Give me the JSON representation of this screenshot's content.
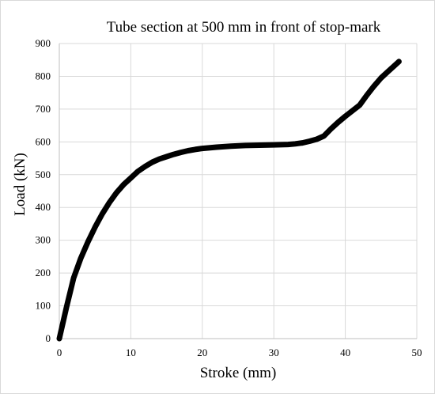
{
  "chart_data": {
    "type": "line",
    "title": "Tube section at 500 mm in front of stop-mark",
    "xlabel": "Stroke (mm)",
    "ylabel": "Load (kN)",
    "xlim": [
      0,
      50
    ],
    "ylim": [
      0,
      900
    ],
    "x_ticks": [
      0,
      10,
      20,
      30,
      40,
      50
    ],
    "y_ticks": [
      0,
      100,
      200,
      300,
      400,
      500,
      600,
      700,
      800,
      900
    ],
    "grid": true,
    "legend": "none",
    "series": [
      {
        "color": "#000000",
        "x": [
          0,
          1,
          2,
          3,
          4,
          5,
          6,
          7,
          8,
          9,
          10,
          11,
          12,
          13,
          14,
          15,
          16,
          17,
          18,
          19,
          20,
          22,
          24,
          26,
          28,
          30,
          32,
          33,
          34,
          35,
          36,
          37,
          38,
          39,
          40,
          41,
          42,
          43,
          44,
          45,
          46,
          47,
          47.5
        ],
        "y": [
          0,
          95,
          185,
          245,
          295,
          340,
          380,
          415,
          445,
          470,
          490,
          510,
          525,
          538,
          548,
          555,
          562,
          568,
          573,
          577,
          580,
          584,
          587,
          589,
          590,
          591,
          592,
          594,
          597,
          602,
          608,
          618,
          640,
          660,
          678,
          695,
          712,
          742,
          770,
          795,
          815,
          835,
          845
        ]
      }
    ]
  }
}
